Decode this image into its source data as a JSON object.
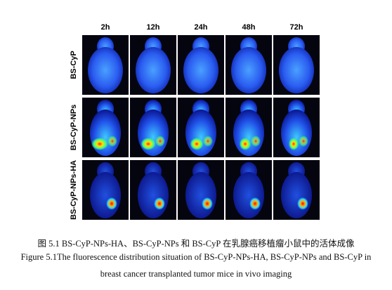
{
  "figure": {
    "columns": [
      "2h",
      "12h",
      "24h",
      "48h",
      "72h"
    ],
    "rows": [
      "BS-CyP",
      "BS-CyP-NPs",
      "BS-CyP-NPs-HA"
    ]
  },
  "caption": {
    "chinese": "图 5.1 BS-CyP-NPs-HA、BS-CyP-NPs 和 BS-CyP 在乳腺癌移植瘤小鼠中的活体成像",
    "english_1": "Figure 5.1The fluorescence distribution situation of BS-CyP-NPs-HA, BS-CyP-NPs and BS-CyP in",
    "english_2": "breast cancer transplanted tumor mice in vivo imaging"
  }
}
